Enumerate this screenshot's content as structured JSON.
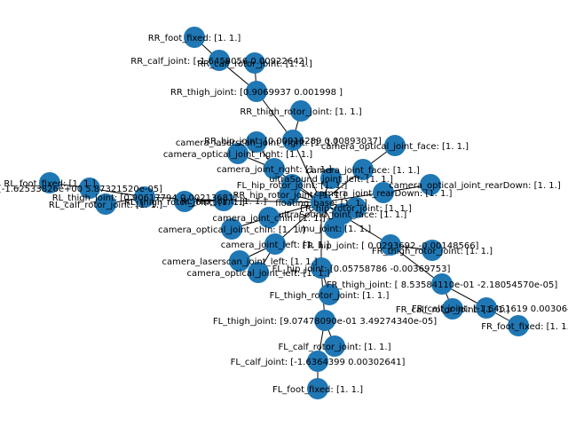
{
  "colors": {
    "node": "#1f77b4",
    "edge": "#000000",
    "label": "#000000",
    "background": "#ffffff"
  },
  "nodes": [
    {
      "id": "rr_foot_fixed",
      "label": "RR_foot_fixed: [1. 1.]"
    },
    {
      "id": "rr_calf_joint",
      "label": "RR_calf_joint: [-1.6458056  0.00922642]"
    },
    {
      "id": "rr_calf_rotor_joint",
      "label": "RR_calf_rotor_joint: [1. 1.]"
    },
    {
      "id": "rr_thigh_joint",
      "label": "RR_thigh_joint: [0.9069937 0.001998 ]"
    },
    {
      "id": "rr_thigh_rotor_joint",
      "label": "RR_thigh_rotor_joint: [1. 1.]"
    },
    {
      "id": "rr_hip_joint",
      "label": "RR_hip_joint: [0.00916289 0.00893037]"
    },
    {
      "id": "camera_laserscan_joint_right",
      "label": "camera_laserscan_joint_right: [1. 1.]"
    },
    {
      "id": "camera_optical_joint_face",
      "label": "camera_optical_joint_face: [1. 1.]"
    },
    {
      "id": "camera_optical_joint_right",
      "label": "camera_optical_joint_right: [1. 1.]"
    },
    {
      "id": "camera_joint_right",
      "label": "camera_joint_right: [1. 1.]"
    },
    {
      "id": "camera_joint_face",
      "label": "camera_joint_face: [1. 1.]"
    },
    {
      "id": "ultrasound_joint_left",
      "label": "ultraSound_joint_left: [1. 1.]"
    },
    {
      "id": "fl_hip_rotor_joint",
      "label": "FL_hip_rotor_joint: [1. 1.]"
    },
    {
      "id": "camera_optical_joint_reardown",
      "label": "camera_optical_joint_rearDown: [1. 1.]"
    },
    {
      "id": "rr_hip_rotor_joint",
      "label": "RR_hip_rotor_joint: [1. 1.]"
    },
    {
      "id": "camera_joint_reardown",
      "label": "camera_joint_rearDown: [1. 1.]"
    },
    {
      "id": "rl_foot_fixed",
      "label": "RL_foot_fixed: [1. 1.]"
    },
    {
      "id": "rl_calf_joint",
      "label": "RL_calf_joint: [-1.62533826e+00  5.87321520e-05]"
    },
    {
      "id": "rl_thigh_joint",
      "label": "RL_thigh_joint: [0.90617794 0.00213681]"
    },
    {
      "id": "rl_calf_rotor_joint",
      "label": "RL_calf_rotor_joint: [1. 1.]"
    },
    {
      "id": "rl_thigh_rotor_joint",
      "label": "RL_thigh_rotor_joint: [1. 1.]"
    },
    {
      "id": "floating_base",
      "label": "floating_base: [1. 1.]"
    },
    {
      "id": "rl_hip_joint",
      "label": "RL_hip_joint: [1. 1.]"
    },
    {
      "id": "fr_hip_rotor_joint",
      "label": "FR_hip_rotor_joint: [1. 1.]"
    },
    {
      "id": "camera_joint_chin",
      "label": "camera_joint_chin: [1. 1.]"
    },
    {
      "id": "ultrasound_joint_face",
      "label": "ultraSound_joint_face: [1. 1.]"
    },
    {
      "id": "camera_optical_joint_chin",
      "label": "camera_optical_joint_chin: [1. 1.]"
    },
    {
      "id": "imu_joint",
      "label": "imu_joint: [1. 1.]"
    },
    {
      "id": "fr_hip_joint",
      "label": "FR_hip_joint: [ 0.0293692  -0.00148566]"
    },
    {
      "id": "fr_thigh_rotor_joint",
      "label": "FR_thigh_rotor_joint: [1. 1.]"
    },
    {
      "id": "camera_joint_left",
      "label": "camera_joint_left: [1. 1.]"
    },
    {
      "id": "camera_laserscan_joint_left",
      "label": "camera_laserscan_joint_left: [1. 1.]"
    },
    {
      "id": "fl_hip_joint",
      "label": "FL_hip_joint: [0.05758786 -0.00369753]"
    },
    {
      "id": "camera_optical_joint_left",
      "label": "camera_optical_joint_left: [1. 1.]"
    },
    {
      "id": "fr_thigh_joint",
      "label": "FR_thigh_joint: [ 8.53584110e-01 -2.18054570e-05]"
    },
    {
      "id": "fl_thigh_rotor_joint",
      "label": "FL_thigh_rotor_joint: [1. 1.]"
    },
    {
      "id": "fr_calf_joint",
      "label": "FR_calf_joint: [-1.6461619   0.00306493]"
    },
    {
      "id": "fr_calf_rotor_joint",
      "label": "FR_calf_rotor_joint: [1. 1.]"
    },
    {
      "id": "fr_foot_fixed",
      "label": "FR_foot_fixed: [1. 1.]"
    },
    {
      "id": "fl_thigh_joint",
      "label": "FL_thigh_joint: [9.07478090e-01 3.49274340e-05]"
    },
    {
      "id": "fl_calf_rotor_joint",
      "label": "FL_calf_rotor_joint: [1. 1.]"
    },
    {
      "id": "fl_calf_joint",
      "label": "FL_calf_joint: [-1.6364399   0.00302641]"
    },
    {
      "id": "fl_foot_fixed",
      "label": "FL_foot_fixed: [1. 1.]"
    }
  ],
  "edges": [
    [
      "rr_foot_fixed",
      "rr_calf_joint"
    ],
    [
      "rr_calf_joint",
      "rr_thigh_joint"
    ],
    [
      "rr_calf_rotor_joint",
      "rr_thigh_joint"
    ],
    [
      "rr_thigh_joint",
      "rr_hip_joint"
    ],
    [
      "rr_thigh_rotor_joint",
      "rr_hip_joint"
    ],
    [
      "rr_hip_joint",
      "floating_base"
    ],
    [
      "rr_hip_rotor_joint",
      "floating_base"
    ],
    [
      "camera_laserscan_joint_right",
      "camera_joint_right"
    ],
    [
      "camera_optical_joint_right",
      "camera_joint_right"
    ],
    [
      "camera_joint_right",
      "floating_base"
    ],
    [
      "camera_optical_joint_face",
      "camera_joint_face"
    ],
    [
      "camera_joint_face",
      "floating_base"
    ],
    [
      "ultrasound_joint_left",
      "floating_base"
    ],
    [
      "fl_hip_rotor_joint",
      "floating_base"
    ],
    [
      "camera_optical_joint_reardown",
      "camera_joint_reardown"
    ],
    [
      "camera_joint_reardown",
      "floating_base"
    ],
    [
      "rl_foot_fixed",
      "rl_calf_joint"
    ],
    [
      "rl_calf_joint",
      "rl_thigh_joint"
    ],
    [
      "rl_calf_rotor_joint",
      "rl_thigh_joint"
    ],
    [
      "rl_thigh_joint",
      "rl_hip_joint"
    ],
    [
      "rl_thigh_rotor_joint",
      "rl_hip_joint"
    ],
    [
      "rl_hip_joint",
      "floating_base"
    ],
    [
      "fr_hip_rotor_joint",
      "floating_base"
    ],
    [
      "camera_joint_chin",
      "floating_base"
    ],
    [
      "camera_optical_joint_chin",
      "camera_joint_chin"
    ],
    [
      "ultrasound_joint_face",
      "floating_base"
    ],
    [
      "imu_joint",
      "floating_base"
    ],
    [
      "fr_hip_joint",
      "floating_base"
    ],
    [
      "fr_thigh_joint",
      "fr_hip_joint"
    ],
    [
      "fr_thigh_rotor_joint",
      "fr_hip_joint"
    ],
    [
      "fr_calf_joint",
      "fr_thigh_joint"
    ],
    [
      "fr_calf_rotor_joint",
      "fr_thigh_joint"
    ],
    [
      "fr_foot_fixed",
      "fr_calf_joint"
    ],
    [
      "camera_joint_left",
      "floating_base"
    ],
    [
      "camera_laserscan_joint_left",
      "camera_joint_left"
    ],
    [
      "camera_optical_joint_left",
      "camera_joint_left"
    ],
    [
      "fl_hip_joint",
      "floating_base"
    ],
    [
      "fl_thigh_joint",
      "fl_hip_joint"
    ],
    [
      "fl_thigh_rotor_joint",
      "fl_hip_joint"
    ],
    [
      "fl_calf_joint",
      "fl_thigh_joint"
    ],
    [
      "fl_calf_rotor_joint",
      "fl_thigh_joint"
    ],
    [
      "fl_foot_fixed",
      "fl_calf_joint"
    ]
  ]
}
